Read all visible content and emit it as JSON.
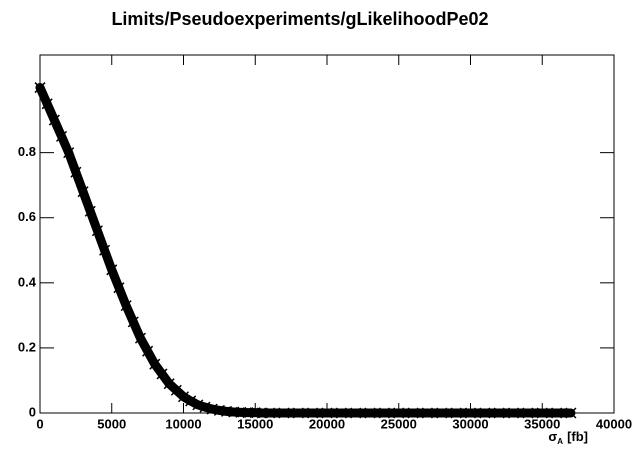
{
  "chart_data": {
    "type": "scatter",
    "title": "Limits/Pseudoexperiments/gLikelihoodPe02",
    "x_label": "σ",
    "x_label_sub": "A",
    "x_label_unit": "[fb]",
    "color": "#000000",
    "x": [
      0,
      500,
      1000,
      1500,
      2000,
      2500,
      3000,
      3500,
      4000,
      4500,
      5000,
      5500,
      6000,
      6500,
      7000,
      7500,
      8000,
      8500,
      9000,
      9500,
      10000,
      10500,
      11000,
      11500,
      12000,
      12500,
      13000,
      13500,
      14000,
      14500,
      15000,
      15500,
      16000,
      17000,
      18000,
      19000,
      20000,
      21000,
      22000,
      23000,
      24000,
      25000,
      26000,
      27000,
      28000,
      29000,
      30000,
      31000,
      32000,
      33000,
      34000,
      35000,
      36000,
      37000
    ],
    "values": [
      1,
      0.95,
      0.9,
      0.85,
      0.8,
      0.74,
      0.68,
      0.62,
      0.56,
      0.5,
      0.44,
      0.385,
      0.33,
      0.28,
      0.23,
      0.19,
      0.15,
      0.12,
      0.09,
      0.07,
      0.05,
      0.037,
      0.025,
      0.018,
      0.012,
      0.008,
      0.005,
      0.003,
      0.002,
      0.001,
      0.001,
      0,
      0,
      0,
      0,
      0,
      0,
      0,
      0,
      0,
      0,
      0,
      0,
      0,
      0,
      0,
      0,
      0,
      0,
      0,
      0,
      0,
      0,
      0
    ],
    "xlim": [
      0,
      40000
    ],
    "ylim": [
      0,
      1.1
    ],
    "xticks": [
      0,
      5000,
      10000,
      15000,
      20000,
      25000,
      30000,
      35000,
      40000
    ],
    "yticks": [
      0,
      0.2,
      0.4,
      0.6,
      0.8
    ],
    "grid": false
  }
}
